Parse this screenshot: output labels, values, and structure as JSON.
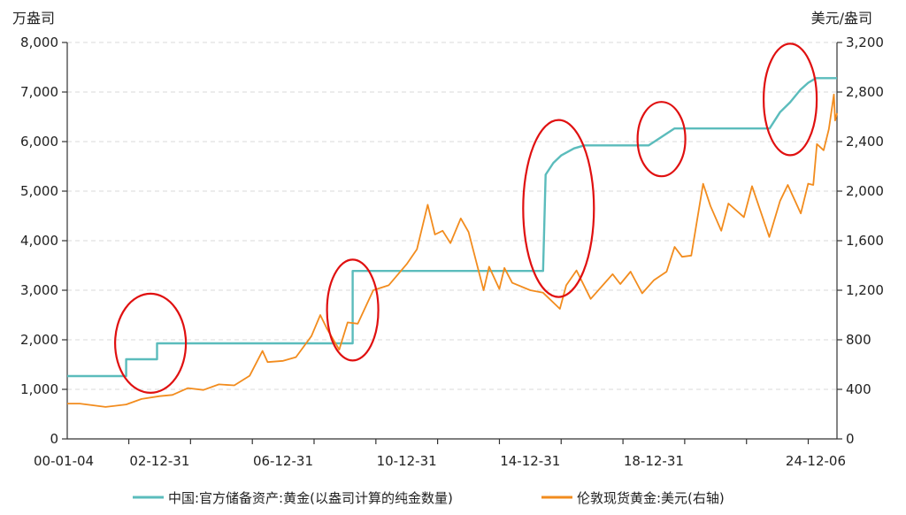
{
  "chart_data": {
    "type": "line",
    "title": "",
    "ylabel_left": "万盎司",
    "ylabel_right": "美元/盎司",
    "ylim_left": [
      0,
      8000
    ],
    "ylim_right": [
      0,
      3200
    ],
    "yticks_left": [
      "0",
      "1,000",
      "2,000",
      "3,000",
      "4,000",
      "5,000",
      "6,000",
      "7,000",
      "8,000"
    ],
    "yticks_right": [
      "0",
      "400",
      "800",
      "1,200",
      "1,600",
      "2,000",
      "2,400",
      "2,800",
      "3,200"
    ],
    "xlim": [
      "2000-01-04",
      "2024-12-06"
    ],
    "xticks": [
      "00-01-04",
      "02-12-31",
      "06-12-31",
      "10-12-31",
      "14-12-31",
      "18-12-31",
      "24-12-06"
    ],
    "grid": "horizontal-dashed",
    "legend_position": "bottom",
    "colors": {
      "reserves": "#5bbcbc",
      "gold_price": "#f28c1e",
      "highlight_circle": "#e01010"
    },
    "series": [
      {
        "name": "中国:官方储备资产:黄金(以盎司计算的纯金数量)",
        "axis": "left",
        "style": "step",
        "points": [
          [
            "2000-01-04",
            1267
          ],
          [
            "2001-12-01",
            1267
          ],
          [
            "2001-12-01",
            1608
          ],
          [
            "2002-12-01",
            1608
          ],
          [
            "2002-12-01",
            1929
          ],
          [
            "2009-04-01",
            1929
          ],
          [
            "2009-04-01",
            3389
          ],
          [
            "2015-06-01",
            3389
          ],
          [
            "2015-07-01",
            5332
          ],
          [
            "2015-10-01",
            5570
          ],
          [
            "2016-01-01",
            5720
          ],
          [
            "2016-06-01",
            5862
          ],
          [
            "2016-10-01",
            5924
          ],
          [
            "2018-11-01",
            5924
          ],
          [
            "2019-02-01",
            6026
          ],
          [
            "2019-06-01",
            6161
          ],
          [
            "2019-09-01",
            6264
          ],
          [
            "2022-10-01",
            6264
          ],
          [
            "2023-02-01",
            6592
          ],
          [
            "2023-06-01",
            6795
          ],
          [
            "2023-10-01",
            7046
          ],
          [
            "2024-01-01",
            7187
          ],
          [
            "2024-04-01",
            7280
          ],
          [
            "2024-12-06",
            7280
          ]
        ]
      },
      {
        "name": "伦敦现货黄金:美元(右轴)",
        "axis": "right",
        "style": "line",
        "points": [
          [
            "2000-01-04",
            285
          ],
          [
            "2000-06-01",
            285
          ],
          [
            "2001-04-01",
            258
          ],
          [
            "2001-12-01",
            278
          ],
          [
            "2002-06-01",
            322
          ],
          [
            "2002-12-31",
            345
          ],
          [
            "2003-06-01",
            355
          ],
          [
            "2003-12-01",
            410
          ],
          [
            "2004-06-01",
            395
          ],
          [
            "2004-12-01",
            440
          ],
          [
            "2005-06-01",
            432
          ],
          [
            "2005-12-01",
            510
          ],
          [
            "2006-05-01",
            710
          ],
          [
            "2006-07-01",
            620
          ],
          [
            "2006-12-31",
            630
          ],
          [
            "2007-06-01",
            660
          ],
          [
            "2007-12-01",
            830
          ],
          [
            "2008-03-15",
            1000
          ],
          [
            "2008-06-01",
            890
          ],
          [
            "2008-10-24",
            720
          ],
          [
            "2009-02-01",
            940
          ],
          [
            "2009-06-01",
            930
          ],
          [
            "2009-12-01",
            1200
          ],
          [
            "2010-06-01",
            1240
          ],
          [
            "2010-12-31",
            1410
          ],
          [
            "2011-05-01",
            1530
          ],
          [
            "2011-09-06",
            1890
          ],
          [
            "2011-12-01",
            1650
          ],
          [
            "2012-03-01",
            1680
          ],
          [
            "2012-06-01",
            1580
          ],
          [
            "2012-10-01",
            1780
          ],
          [
            "2013-01-01",
            1670
          ],
          [
            "2013-06-28",
            1200
          ],
          [
            "2013-09-01",
            1390
          ],
          [
            "2013-12-31",
            1210
          ],
          [
            "2014-03-01",
            1380
          ],
          [
            "2014-06-01",
            1260
          ],
          [
            "2014-12-31",
            1200
          ],
          [
            "2015-06-01",
            1180
          ],
          [
            "2015-12-17",
            1050
          ],
          [
            "2016-03-01",
            1240
          ],
          [
            "2016-07-01",
            1360
          ],
          [
            "2016-12-15",
            1130
          ],
          [
            "2017-06-01",
            1260
          ],
          [
            "2017-09-01",
            1330
          ],
          [
            "2017-12-01",
            1250
          ],
          [
            "2018-04-01",
            1350
          ],
          [
            "2018-08-16",
            1175
          ],
          [
            "2018-12-31",
            1280
          ],
          [
            "2019-06-01",
            1350
          ],
          [
            "2019-09-04",
            1550
          ],
          [
            "2019-12-01",
            1470
          ],
          [
            "2020-03-19",
            1480
          ],
          [
            "2020-08-06",
            2060
          ],
          [
            "2020-11-01",
            1880
          ],
          [
            "2021-03-08",
            1680
          ],
          [
            "2021-06-01",
            1900
          ],
          [
            "2021-12-01",
            1790
          ],
          [
            "2022-03-08",
            2040
          ],
          [
            "2022-09-28",
            1630
          ],
          [
            "2023-02-01",
            1920
          ],
          [
            "2023-05-04",
            2050
          ],
          [
            "2023-10-05",
            1820
          ],
          [
            "2023-12-31",
            2060
          ],
          [
            "2024-03-01",
            2050
          ],
          [
            "2024-04-12",
            2380
          ],
          [
            "2024-07-01",
            2330
          ],
          [
            "2024-09-01",
            2500
          ],
          [
            "2024-10-30",
            2780
          ],
          [
            "2024-11-14",
            2570
          ],
          [
            "2024-12-06",
            2630
          ]
        ]
      }
    ],
    "annotations": [
      {
        "type": "ellipse",
        "date": "2002-09-15",
        "value_left": 1930,
        "note": ""
      },
      {
        "type": "ellipse",
        "date": "2009-04-01",
        "value_left": 2600,
        "note": ""
      },
      {
        "type": "ellipse",
        "date": "2015-12-01",
        "value_left": 4650,
        "note": ""
      },
      {
        "type": "ellipse",
        "date": "2019-04-01",
        "value_left": 6050,
        "note": ""
      },
      {
        "type": "ellipse",
        "date": "2023-06-01",
        "value_left": 6850,
        "note": ""
      }
    ]
  }
}
